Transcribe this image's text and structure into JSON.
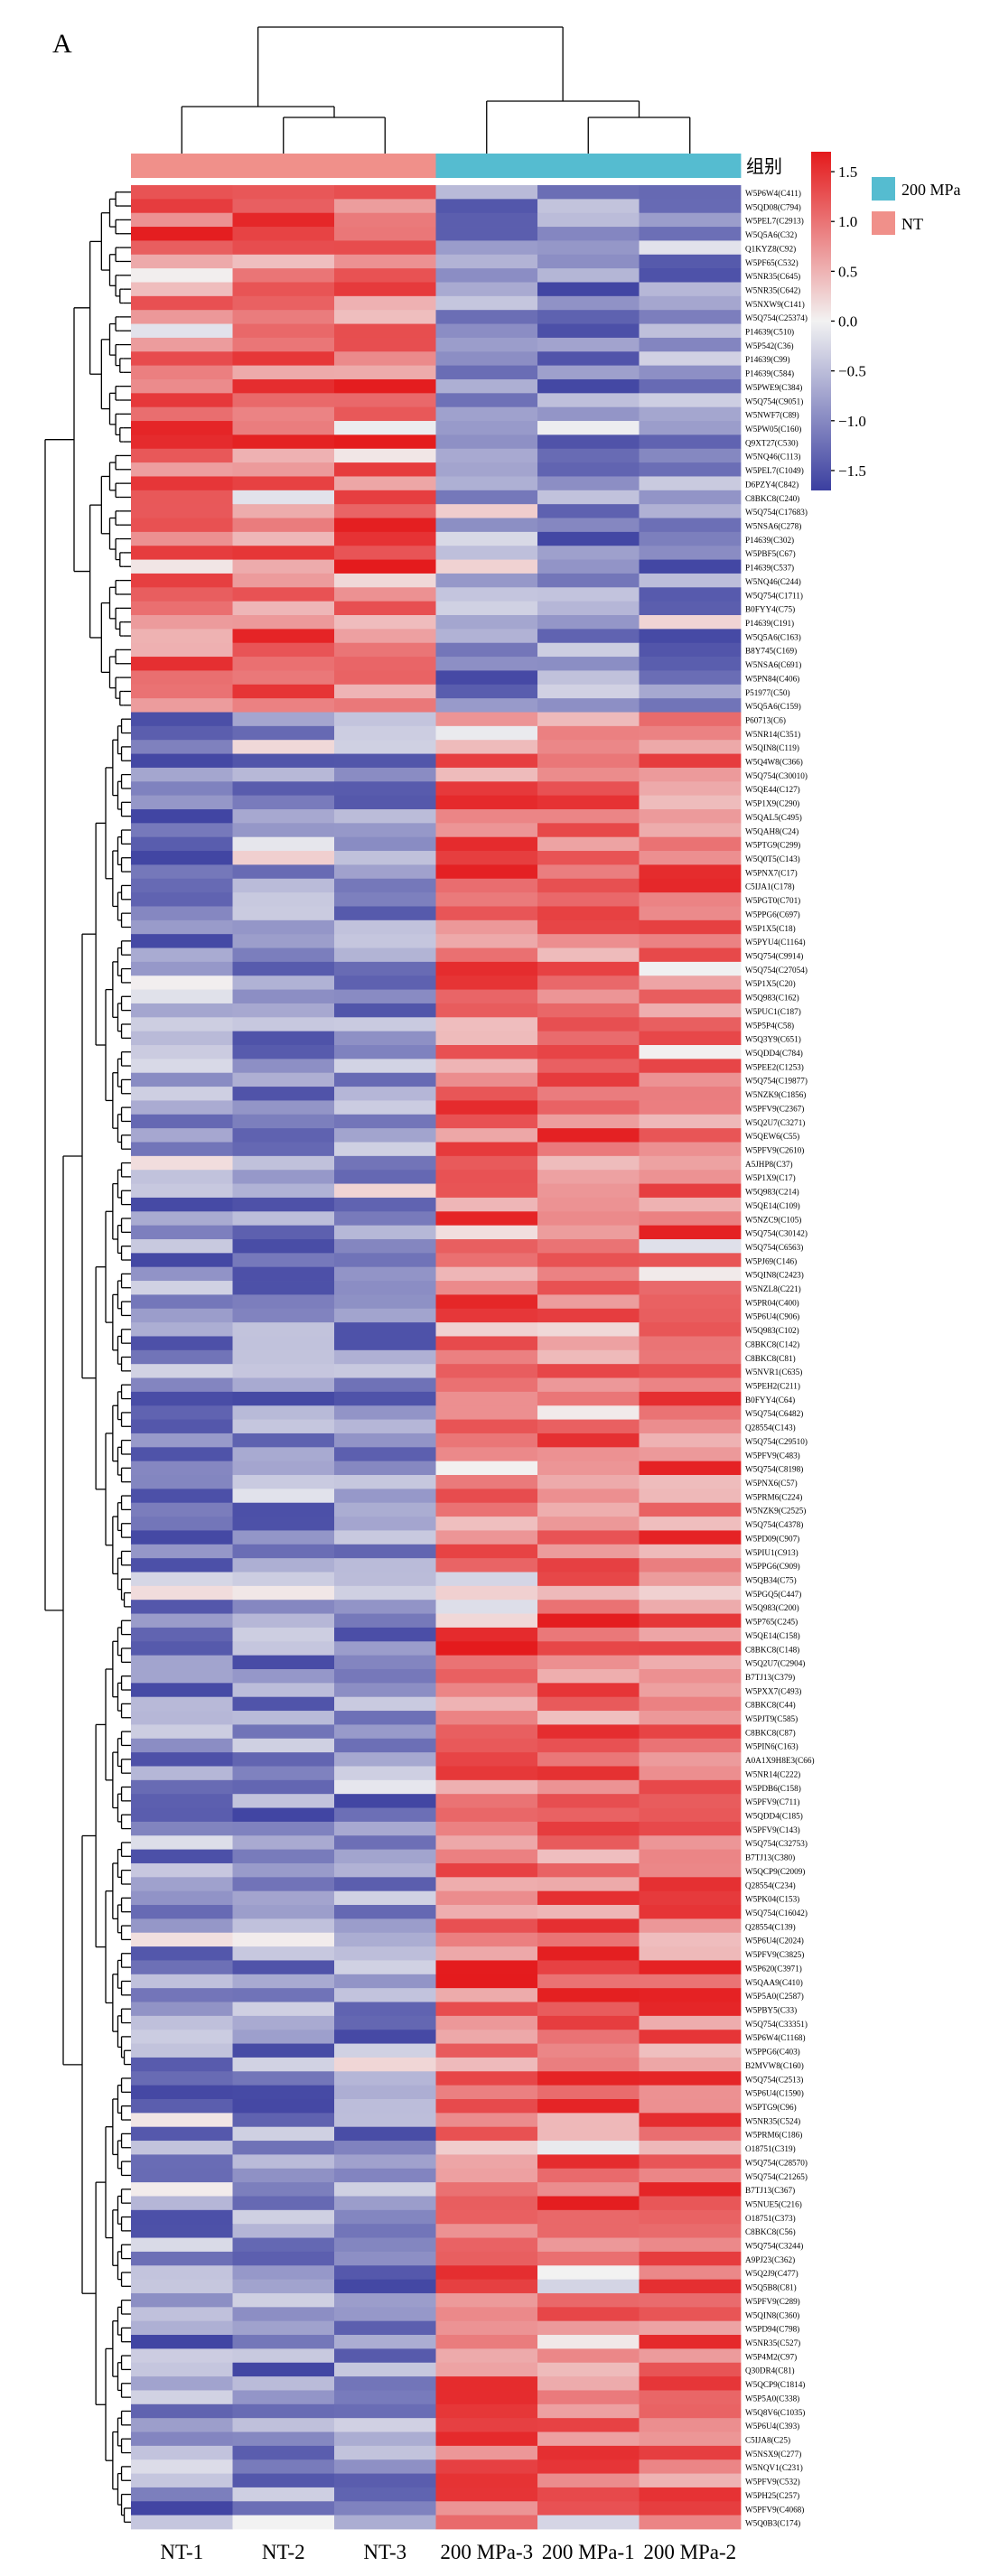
{
  "panel_label": "A",
  "chart_data": {
    "type": "heatmap",
    "columns": [
      "NT-1",
      "NT-2",
      "NT-3",
      "200 MPa-3",
      "200 MPa-1",
      "200 MPa-2"
    ],
    "groups": [
      "NT",
      "NT",
      "NT",
      "200 MPa",
      "200 MPa",
      "200 MPa"
    ],
    "group_legend": {
      "title": "组别",
      "items": [
        {
          "name": "200 MPa",
          "color": "#55bcd0"
        },
        {
          "name": "NT",
          "color": "#f0908a"
        }
      ]
    },
    "colorbar": {
      "range": [
        -1.7,
        1.7
      ],
      "ticks": [
        1.5,
        1.0,
        0.5,
        0.0,
        -0.5,
        -1.0,
        -1.5
      ],
      "tick_labels": [
        "1.5",
        "1.0",
        "0.5",
        "0.0",
        "−0.5",
        "−1.0",
        "−1.5"
      ],
      "colors": {
        "low": "#3b3fa0",
        "mid": "#f2f2f2",
        "high": "#e41a1c"
      }
    },
    "up_in_NT_rows": [
      "W5P6W4(C411)",
      "W5QD08(C794)",
      "W5PEL7(C2913)",
      "W5Q5A6(C32)",
      "Q1KYZ8(C92)",
      "W5PF65(C532)",
      "W5NR35(C645)",
      "W5NR35(C642)",
      "W5NXW9(C141)",
      "W5Q754(C25374)",
      "P14639(C510)",
      "W5P542(C36)",
      "P14639(C99)",
      "P14639(C584)",
      "W5PWE9(C384)",
      "W5Q754(C9051)",
      "W5NWF7(C89)",
      "W5PW05(C160)",
      "Q9XT27(C530)",
      "W5NQ46(C113)",
      "W5PEL7(C1049)",
      "D6PZY4(C842)",
      "C8BKC8(C240)",
      "W5Q754(C17683)",
      "W5NSA6(C278)",
      "P14639(C302)",
      "W5PBF5(C67)",
      "P14639(C537)",
      "W5NQ46(C244)",
      "W5Q754(C1711)",
      "B0FYY4(C75)",
      "P14639(C191)",
      "W5Q5A6(C163)",
      "B8Y745(C169)",
      "W5NSA6(C691)",
      "W5PN84(C406)",
      "P51977(C50)",
      "W5Q5A6(C159)"
    ],
    "up_in_200MPa_rows": [
      "P60713(C6)",
      "W5NR14(C351)",
      "W5QIN8(C119)",
      "W5Q4W8(C366)",
      "W5Q754(C30010)",
      "W5QE44(C127)",
      "W5P1X9(C290)",
      "W5QAL5(C495)",
      "W5QAH8(C24)",
      "W5PTG9(C299)",
      "W5Q0T5(C143)",
      "W5PNX7(C17)",
      "C5IJA1(C178)",
      "W5PGT0(C701)",
      "W5PPG6(C697)",
      "W5P1X5(C18)",
      "W5PYU4(C1164)",
      "W5Q754(C9914)",
      "W5Q754(C27054)",
      "W5P1X5(C20)",
      "W5Q983(C162)",
      "W5PUC1(C187)",
      "W5P5P4(C58)",
      "W5Q3Y9(C651)",
      "W5QDD4(C784)",
      "W5PEE2(C1253)",
      "W5Q754(C19877)",
      "W5NZK9(C1856)",
      "W5PFV9(C2367)",
      "W5Q2U7(C3271)",
      "W5QEW6(C55)",
      "W5PFV9(C2610)",
      "A5JHP8(C37)",
      "W5P1X9(C17)",
      "W5Q983(C214)",
      "W5QE14(C109)",
      "W5NZC9(C105)",
      "W5Q754(C30142)",
      "W5Q754(C6563)",
      "W5PJ69(C146)",
      "W5QIN8(C2423)",
      "W5NZL8(C221)",
      "W5PR04(C400)",
      "W5P6U4(C906)",
      "W5Q983(C102)",
      "C8BKC8(C142)",
      "C8BKC8(C81)",
      "W5NVR1(C635)",
      "W5PEH2(C211)",
      "B0FYY4(C64)",
      "W5Q754(C6482)",
      "Q28554(C143)",
      "W5Q754(C29510)",
      "W5PFV9(C483)",
      "W5Q754(C8198)",
      "W5PNX6(C57)",
      "W5PRM6(C224)",
      "W5NZK9(C2525)",
      "W5Q754(C4378)",
      "W5PD09(C907)",
      "W5PIU1(C913)",
      "W5PPG6(C909)",
      "W5QB34(C75)",
      "W5PGQ5(C447)",
      "W5Q983(C200)",
      "W5P765(C245)",
      "W5QE14(C158)",
      "C8BKC8(C148)",
      "W5Q2U7(C2904)",
      "B7TJ13(C379)",
      "W5PXX7(C493)",
      "C8BKC8(C44)",
      "W5PJT9(C585)",
      "C8BKC8(C87)",
      "W5PIN6(C163)",
      "A0A1X9H8E3(C66)",
      "W5NR14(C222)",
      "W5PDB6(C158)",
      "W5PFV9(C711)",
      "W5QDD4(C185)",
      "W5PFV9(C143)",
      "W5Q754(C32753)",
      "B7TJ13(C380)",
      "W5QCP9(C2009)",
      "Q28554(C234)",
      "W5PK04(C153)",
      "W5Q754(C16042)",
      "Q28554(C139)",
      "W5P6U4(C2024)",
      "W5PFV9(C3825)",
      "W5P620(C3971)",
      "W5QAA9(C410)",
      "W5P5A0(C2587)",
      "W5PBY5(C33)",
      "W5Q754(C33351)",
      "W5P6W4(C1168)",
      "W5PPG6(C403)",
      "B2MVW8(C160)",
      "W5Q754(C2513)",
      "W5P6U4(C1590)",
      "W5PTG9(C96)",
      "W5NR35(C524)",
      "W5PRM6(C186)",
      "O18751(C319)",
      "W5Q754(C28570)",
      "W5Q754(C21265)",
      "B7TJ13(C367)",
      "W5NUE5(C216)",
      "O18751(C373)",
      "C8BKC8(C56)",
      "W5Q754(C3244)",
      "A9PJ23(C362)",
      "W5Q2J9(C477)",
      "W5Q5B8(C81)",
      "W5PFV9(C289)",
      "W5QIN8(C360)",
      "W5PD94(C798)",
      "W5NR35(C527)",
      "W5P4M2(C97)",
      "Q30DR4(C81)",
      "W5QCP9(C1814)",
      "W5P5A0(C338)",
      "W5Q8V6(C1035)",
      "W5P6U4(C393)",
      "C5IJA8(C25)",
      "W5NSX9(C277)",
      "W5NQV1(C231)",
      "W5PFV9(C532)",
      "W5PH25(C257)",
      "W5PFV9(C4068)",
      "W5Q0B3(C174)"
    ]
  }
}
